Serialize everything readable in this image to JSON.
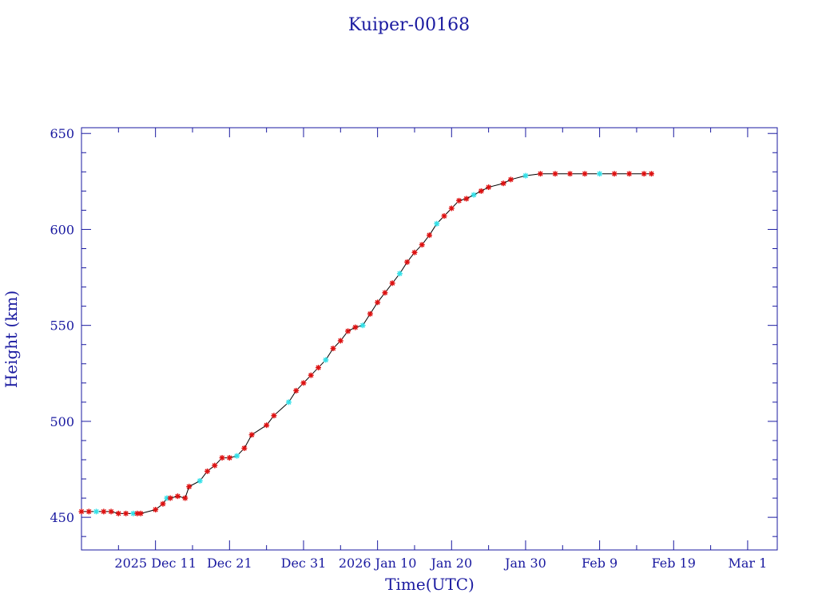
{
  "chart_data": {
    "type": "scatter",
    "title": "Kuiper-00168",
    "xlabel": "Time(UTC)",
    "ylabel": "Height (km)",
    "ylim": [
      433,
      653
    ],
    "yticks": [
      450,
      500,
      550,
      600,
      650
    ],
    "xlim": [
      "2025-12-01",
      "2026-03-05"
    ],
    "xticks": [
      {
        "date": "2025-12-11",
        "label": "2025 Dec 11"
      },
      {
        "date": "2025-12-21",
        "label": "Dec 21"
      },
      {
        "date": "2025-12-31",
        "label": "Dec 31"
      },
      {
        "date": "2026-01-10",
        "label": "2026 Jan 10"
      },
      {
        "date": "2026-01-20",
        "label": "Jan 20"
      },
      {
        "date": "2026-01-30",
        "label": "Jan 30"
      },
      {
        "date": "2026-02-09",
        "label": "Feb 9"
      },
      {
        "date": "2026-02-19",
        "label": "Feb 19"
      },
      {
        "date": "2026-03-01",
        "label": "Mar 1"
      }
    ],
    "grid": false,
    "colors": {
      "axis": "#1a1aa0",
      "line": "#000000",
      "marker_primary": "#dd1111",
      "marker_secondary": "#33e0e8"
    },
    "series": [
      {
        "x": [
          "2025-12-01",
          "2025-12-02",
          "2025-12-03",
          "2025-12-04",
          "2025-12-05",
          "2025-12-06",
          "2025-12-07",
          "2025-12-08",
          "2025-12-08",
          "2025-12-09",
          "2025-12-11",
          "2025-12-12",
          "2025-12-12",
          "2025-12-13",
          "2025-12-14",
          "2025-12-15",
          "2025-12-15",
          "2025-12-17",
          "2025-12-18",
          "2025-12-19",
          "2025-12-20",
          "2025-12-21",
          "2025-12-22",
          "2025-12-23",
          "2025-12-24",
          "2025-12-26",
          "2025-12-27",
          "2025-12-29",
          "2025-12-30",
          "2025-12-31",
          "2026-01-01",
          "2026-01-02",
          "2026-01-03",
          "2026-01-04",
          "2026-01-05",
          "2026-01-06",
          "2026-01-07",
          "2026-01-08",
          "2026-01-09",
          "2026-01-10",
          "2026-01-11",
          "2026-01-12",
          "2026-01-13",
          "2026-01-14",
          "2026-01-15",
          "2026-01-16",
          "2026-01-17",
          "2026-01-18",
          "2026-01-19",
          "2026-01-20",
          "2026-01-21",
          "2026-01-22",
          "2026-01-23",
          "2026-01-24",
          "2026-01-25",
          "2026-01-27",
          "2026-01-28",
          "2026-01-30",
          "2026-02-01",
          "2026-02-03",
          "2026-02-05",
          "2026-02-07",
          "2026-02-09",
          "2026-02-11",
          "2026-02-13",
          "2026-02-15",
          "2026-02-16"
        ],
        "y": [
          453,
          453,
          453,
          453,
          453,
          452,
          452,
          452,
          452,
          452,
          454,
          457,
          460,
          460,
          461,
          460,
          466,
          469,
          474,
          477,
          481,
          481,
          482,
          486,
          493,
          498,
          503,
          510,
          516,
          520,
          524,
          528,
          532,
          538,
          542,
          547,
          549,
          550,
          556,
          562,
          567,
          572,
          577,
          583,
          588,
          592,
          597,
          603,
          607,
          611,
          615,
          616,
          618,
          620,
          622,
          624,
          626,
          628,
          629,
          629,
          629,
          629,
          629,
          629,
          629,
          629,
          629
        ]
      }
    ]
  }
}
